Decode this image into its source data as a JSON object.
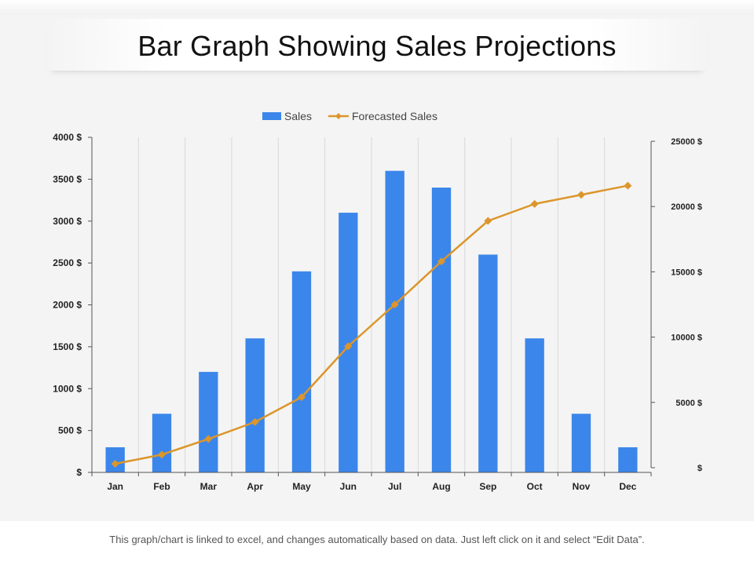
{
  "page": {
    "title": "Bar Graph Showing Sales Projections",
    "footer_note": "This graph/chart is linked to excel, and changes automatically based on data. Just left click on it and select “Edit Data”."
  },
  "colors": {
    "bar": "#3b86ea",
    "line": "#dc962b",
    "grid": "#d9d9d9",
    "axis": "#555555"
  },
  "chart_data": {
    "type": "bar",
    "categories": [
      "Jan",
      "Feb",
      "Mar",
      "Apr",
      "May",
      "Jun",
      "Jul",
      "Aug",
      "Sep",
      "Oct",
      "Nov",
      "Dec"
    ],
    "series": [
      {
        "name": "Sales",
        "type": "bar",
        "axis": "left",
        "values": [
          300,
          700,
          1200,
          1600,
          2400,
          3100,
          3600,
          3400,
          2600,
          1600,
          700,
          300
        ]
      },
      {
        "name": "Forecasted Sales",
        "type": "line",
        "axis": "right",
        "values": [
          300,
          1000,
          2200,
          3500,
          5400,
          9300,
          12500,
          15800,
          18900,
          20200,
          20900,
          21600
        ]
      }
    ],
    "left_axis": {
      "min": 0,
      "max": 4000,
      "ticks": [
        "$",
        "500 $",
        "1000 $",
        "1500 $",
        "2000 $",
        "2500 $",
        "3000 $",
        "3500 $",
        "4000 $"
      ]
    },
    "right_axis": {
      "min": 0,
      "max": 25000,
      "ticks": [
        "$",
        "5000 $",
        "10000 $",
        "15000 $",
        "20000 $",
        "25000 $"
      ]
    },
    "legend": [
      "Sales",
      "Forecasted Sales"
    ],
    "legend_position": "top-center",
    "grid": "vertical"
  }
}
